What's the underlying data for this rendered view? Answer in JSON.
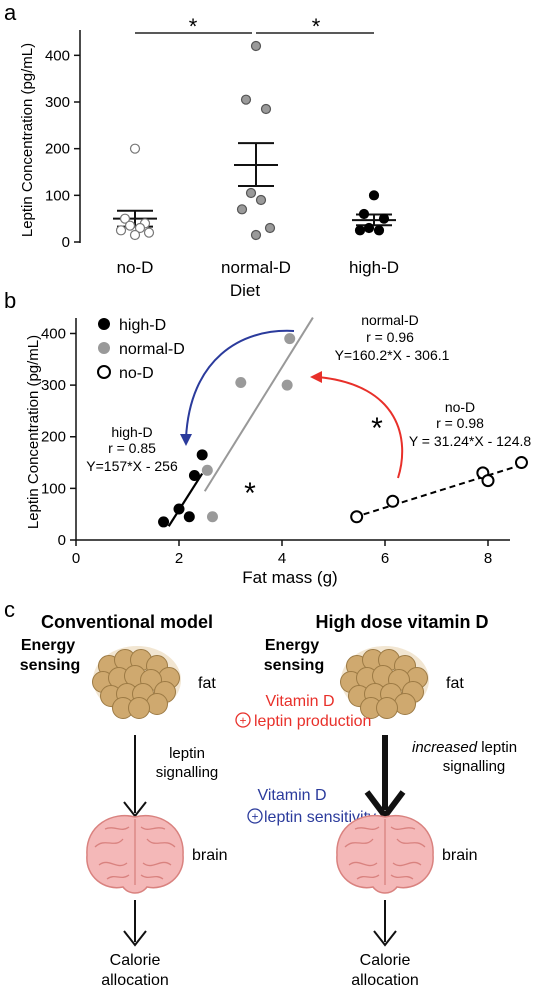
{
  "panel_a": {
    "label": "a",
    "ylabel": "Leptin Concentration (pg/mL)",
    "xlabel": "Diet",
    "yticks": [
      0,
      100,
      200,
      300,
      400
    ],
    "significance": [
      "*",
      "*"
    ]
  },
  "panel_b": {
    "label": "b",
    "ylabel": "Leptin Concentration (pg/mL)",
    "xlabel": "Fat mass (g)",
    "xticks": [
      0,
      2,
      4,
      6,
      8
    ],
    "yticks": [
      0,
      100,
      200,
      300,
      400
    ],
    "annotations": {
      "normal_title": "normal-D",
      "normal_r": "r = 0.96",
      "normal_eq": "Y=160.2*X - 306.1",
      "high_title": "high-D",
      "high_r": "r = 0.85",
      "high_eq": "Y=157*X - 256",
      "no_title": "no-D",
      "no_r": "r = 0.98",
      "no_eq": "Y = 31.24*X - 124.8"
    },
    "stars": [
      "*",
      "*"
    ]
  },
  "panel_c": {
    "label": "c",
    "left": {
      "title": "Conventional model",
      "sensing": [
        "Energy",
        "sensing"
      ],
      "fat": "fat",
      "signal": [
        "leptin",
        "signalling"
      ],
      "brain": "brain",
      "outcome": [
        "Calorie",
        "allocation"
      ]
    },
    "right": {
      "title": "High dose vitamin D",
      "sensing": [
        "Energy",
        "sensing"
      ],
      "fat": "fat",
      "vitd_red_1": "Vitamin D",
      "vitd_red_2": "leptin production",
      "signal_italic": "increased",
      "signal_rest": " leptin",
      "signal_2": "signalling",
      "vitd_blue_1": "Vitamin D",
      "vitd_blue_2": "leptin sensitivity",
      "brain": "brain",
      "outcome": [
        "Calorie",
        "allocation"
      ]
    },
    "colors": {
      "red": "#e8302a",
      "blue": "#2b3b9c",
      "fat_fill": "#d6b88a",
      "fat_stroke": "#a88650",
      "brain_fill": "#f4b8b8",
      "brain_stroke": "#d9827f"
    }
  },
  "chart_data": [
    {
      "type": "scatter",
      "title": "",
      "xlabel": "Diet",
      "ylabel": "Leptin Concentration (pg/mL)",
      "ylim": [
        0,
        450
      ],
      "categories": [
        "no-D",
        "normal-D",
        "high-D"
      ],
      "series": [
        {
          "name": "no-D",
          "color": "#ffffff",
          "values": [
            200,
            50,
            40,
            35,
            30,
            25,
            20,
            15
          ],
          "mean": 50,
          "sem_low": 33,
          "sem_high": 67
        },
        {
          "name": "normal-D",
          "color": "#999999",
          "values": [
            420,
            305,
            285,
            105,
            90,
            70,
            30,
            15
          ],
          "mean": 165,
          "sem_low": 120,
          "sem_high": 212
        },
        {
          "name": "high-D",
          "color": "#000000",
          "values": [
            100,
            60,
            50,
            30,
            25,
            25
          ],
          "mean": 47,
          "sem_low": 36,
          "sem_high": 59
        }
      ],
      "grid": false
    },
    {
      "type": "scatter",
      "title": "",
      "xlabel": "Fat mass (g)",
      "ylabel": "Leptin Concentration (pg/mL)",
      "xlim": [
        0,
        9
      ],
      "ylim": [
        0,
        430
      ],
      "legend_position": "top-left",
      "series": [
        {
          "name": "high-D",
          "marker": "filled-black",
          "points": [
            [
              1.7,
              35
            ],
            [
              2.0,
              60
            ],
            [
              2.2,
              45
            ],
            [
              2.3,
              125
            ],
            [
              2.45,
              165
            ]
          ],
          "fit": {
            "slope": 157,
            "intercept": -256,
            "x_range": [
              1.8,
              2.45
            ]
          }
        },
        {
          "name": "normal-D",
          "marker": "filled-gray",
          "points": [
            [
              2.55,
              135
            ],
            [
              2.65,
              45
            ],
            [
              3.2,
              305
            ],
            [
              4.1,
              300
            ],
            [
              4.15,
              390
            ]
          ],
          "fit": {
            "slope": 160.2,
            "intercept": -306.1,
            "x_range": [
              2.5,
              4.6
            ]
          }
        },
        {
          "name": "no-D",
          "marker": "open-circle",
          "points": [
            [
              5.45,
              45
            ],
            [
              6.15,
              75
            ],
            [
              7.9,
              130
            ],
            [
              8.0,
              115
            ],
            [
              8.65,
              150
            ]
          ],
          "fit": {
            "slope": 31.24,
            "intercept": -124.8,
            "x_range": [
              5.4,
              8.7
            ]
          }
        }
      ],
      "grid": false
    }
  ]
}
